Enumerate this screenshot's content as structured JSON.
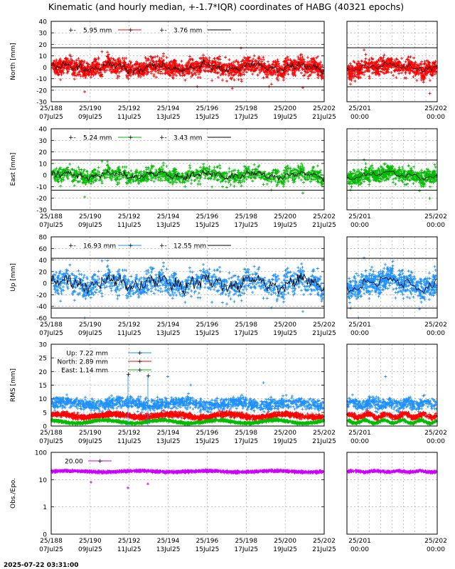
{
  "title": "Kinematic (and hourly median, +-1.7*IQR) coordinates of HABG (40321 epochs)",
  "timestamp": "2025-07-22 03:31:00",
  "main_x_ticks": [
    {
      "doy": "25/188",
      "date": "07Jul25"
    },
    {
      "doy": "25/190",
      "date": "09Jul25"
    },
    {
      "doy": "25/192",
      "date": "11Jul25"
    },
    {
      "doy": "25/194",
      "date": "13Jul25"
    },
    {
      "doy": "25/196",
      "date": "15Jul25"
    },
    {
      "doy": "25/198",
      "date": "17Jul25"
    },
    {
      "doy": "25/200",
      "date": "19Jul25"
    },
    {
      "doy": "25/202",
      "date": "21Jul25"
    }
  ],
  "zoom_x_ticks": [
    {
      "doy": "25/201",
      "time": "00:00"
    },
    {
      "doy": "25/202",
      "time": "00:00"
    }
  ],
  "colors": {
    "north": "#ff0000",
    "east": "#00bb00",
    "up": "#1e90ff",
    "obs": "#cc00ff",
    "median": "#000000"
  },
  "chart_data": [
    {
      "id": "north",
      "type": "scatter",
      "ylabel": "North [mm]",
      "ylim": [
        -30,
        40
      ],
      "yticks": [
        -30,
        -20,
        -10,
        0,
        10,
        20,
        30,
        40
      ],
      "iqr_band": [
        -17,
        17
      ],
      "series": [
        {
          "name": "5.95 mm",
          "role": "epochs",
          "color": "#ff0000",
          "spread": 5.95
        },
        {
          "name": "3.76 mm",
          "role": "hourly median",
          "color": "#000000",
          "spread": 3.76
        }
      ]
    },
    {
      "id": "east",
      "type": "scatter",
      "ylabel": "East [mm]",
      "ylim": [
        -30,
        40
      ],
      "yticks": [
        -30,
        -20,
        -10,
        0,
        10,
        20,
        30,
        40
      ],
      "iqr_band": [
        -13,
        13
      ],
      "series": [
        {
          "name": "5.24 mm",
          "role": "epochs",
          "color": "#00bb00",
          "spread": 5.24
        },
        {
          "name": "3.43 mm",
          "role": "hourly median",
          "color": "#000000",
          "spread": 3.43
        }
      ]
    },
    {
      "id": "up",
      "type": "scatter",
      "ylabel": "Up [mm]",
      "ylim": [
        -60,
        80
      ],
      "yticks": [
        -60,
        -40,
        -20,
        0,
        20,
        40,
        60,
        80
      ],
      "iqr_band": [
        -43,
        43
      ],
      "series": [
        {
          "name": "16.93 mm",
          "role": "epochs",
          "color": "#1e90ff",
          "spread": 16.93
        },
        {
          "name": "12.55 mm",
          "role": "hourly median",
          "color": "#000000",
          "spread": 12.55
        }
      ]
    },
    {
      "id": "rms",
      "type": "scatter",
      "ylabel": "RMS [mm]",
      "ylim": [
        0,
        30
      ],
      "yticks": [
        0,
        5,
        10,
        15,
        20,
        25,
        30
      ],
      "series": [
        {
          "name": "Up:   7.22 mm",
          "color": "#1e90ff",
          "level": 8.2
        },
        {
          "name": "North:   2.89 mm",
          "color": "#ff0000",
          "level": 3.8
        },
        {
          "name": "East:   1.14 mm",
          "color": "#00bb00",
          "level": 1.6
        }
      ]
    },
    {
      "id": "obs",
      "type": "scatter",
      "ylabel": "Obs./Epo.",
      "yscale": "log",
      "ylim": [
        0,
        100
      ],
      "yticks": [
        0,
        1,
        10,
        100
      ],
      "series": [
        {
          "name": "20.00",
          "color": "#cc00ff",
          "level": 20
        }
      ]
    }
  ]
}
